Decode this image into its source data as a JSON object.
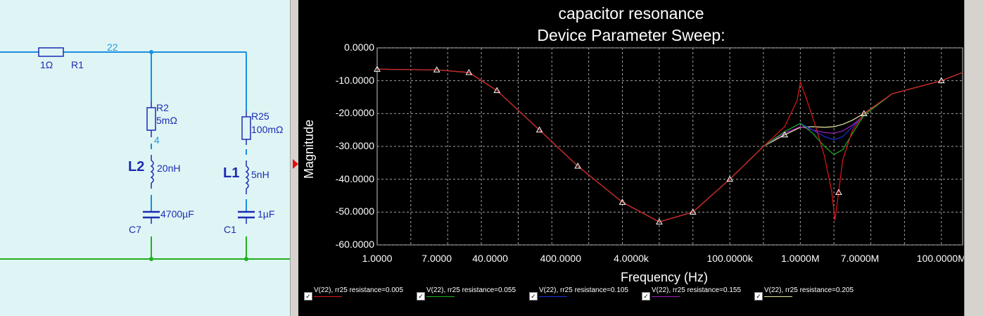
{
  "schematic": {
    "net_label": "22",
    "r1": {
      "value": "1Ω",
      "name": "R1"
    },
    "r2": {
      "name": "R2",
      "value": "5mΩ"
    },
    "node4": "4",
    "l2": {
      "name": "L2",
      "value": "20nH"
    },
    "c7": {
      "value": "4700µF",
      "name": "C7"
    },
    "r25": {
      "name": "R25",
      "value": "100mΩ"
    },
    "l1": {
      "name": "L1",
      "value": "5nH"
    },
    "c1": {
      "value": "1µF",
      "name": "C1"
    }
  },
  "grapher": {
    "title1": "capacitor resonance",
    "title2": "Device Parameter Sweep:"
  },
  "chart_data": {
    "type": "line",
    "title": "capacitor resonance / Device Parameter Sweep:",
    "xlabel": "Frequency (Hz)",
    "ylabel": "Magnitude",
    "xscale": "log",
    "xlim": [
      1,
      200000000
    ],
    "ylim": [
      -60,
      0
    ],
    "grid": true,
    "background": "#000000",
    "legend_position": "bottom",
    "y_ticks": [
      "0.0000",
      "-10.0000",
      "-20.0000",
      "-30.0000",
      "-40.0000",
      "-50.0000",
      "-60.0000"
    ],
    "x_ticks": [
      {
        "label": "1.0000",
        "value": 1
      },
      {
        "label": "7.0000",
        "value": 7
      },
      {
        "label": "40.0000",
        "value": 40
      },
      {
        "label": "400.0000",
        "value": 400
      },
      {
        "label": "4.0000k",
        "value": 4000
      },
      {
        "label": "100.0000k",
        "value": 100000
      },
      {
        "label": "1.0000M",
        "value": 1000000
      },
      {
        "label": "7.0000M",
        "value": 7000000
      },
      {
        "label": "100.0000M",
        "value": 100000000
      }
    ],
    "series": [
      {
        "name": "V(22), rr25 resistance=0.005",
        "color": "#e01818",
        "x": [
          1,
          7,
          20,
          50,
          200,
          700,
          3000,
          10000,
          30000,
          100000,
          300000,
          600000,
          900000,
          1000000,
          1200000,
          1600000,
          2200000,
          2800000,
          3100000,
          3400000,
          4000000,
          5500000,
          8000000,
          20000000,
          100000000,
          200000000
        ],
        "y": [
          -6.5,
          -6.7,
          -7.5,
          -13,
          -25,
          -36,
          -47,
          -53,
          -50,
          -40,
          -30,
          -24,
          -16,
          -10.5,
          -15,
          -23,
          -33,
          -44,
          -52.5,
          -46,
          -34,
          -25,
          -20,
          -14,
          -10,
          -7.5
        ]
      },
      {
        "name": "V(22), rr25 resistance=0.055",
        "color": "#20b020",
        "x": [
          1,
          7,
          20,
          50,
          200,
          700,
          3000,
          10000,
          30000,
          100000,
          300000,
          600000,
          1000000,
          1500000,
          2200000,
          3000000,
          4000000,
          5500000,
          8000000,
          20000000,
          100000000,
          200000000
        ],
        "y": [
          -6.5,
          -6.7,
          -7.5,
          -13,
          -25,
          -36,
          -47,
          -53,
          -50,
          -40,
          -30,
          -25.5,
          -23,
          -26,
          -30,
          -32.5,
          -31,
          -26,
          -20.5,
          -14,
          -10,
          -7.5
        ]
      },
      {
        "name": "V(22), rr25 resistance=0.105",
        "color": "#2030e0",
        "x": [
          1,
          7,
          20,
          50,
          200,
          700,
          3000,
          10000,
          30000,
          100000,
          300000,
          600000,
          1000000,
          1500000,
          2200000,
          3000000,
          4000000,
          5500000,
          8000000,
          20000000,
          100000000,
          200000000
        ],
        "y": [
          -6.5,
          -6.7,
          -7.5,
          -13,
          -25,
          -36,
          -47,
          -53,
          -50,
          -40,
          -30,
          -25.5,
          -23,
          -25,
          -27,
          -28,
          -27,
          -24,
          -20.5,
          -14,
          -10,
          -7.5
        ]
      },
      {
        "name": "V(22), rr25 resistance=0.155",
        "color": "#a020c0",
        "x": [
          1,
          7,
          20,
          50,
          200,
          700,
          3000,
          10000,
          30000,
          100000,
          300000,
          600000,
          1000000,
          1500000,
          2200000,
          3000000,
          4000000,
          5500000,
          8000000,
          20000000,
          100000000,
          200000000
        ],
        "y": [
          -6.5,
          -6.7,
          -7.5,
          -13,
          -25,
          -36,
          -47,
          -53,
          -50,
          -40,
          -30,
          -26,
          -24,
          -25,
          -25.8,
          -26,
          -25.3,
          -23.5,
          -20.5,
          -14,
          -10,
          -7.5
        ]
      },
      {
        "name": "V(22), rr25 resistance=0.205",
        "color": "#e8e8a0",
        "x": [
          1,
          7,
          20,
          50,
          200,
          700,
          3000,
          10000,
          30000,
          100000,
          300000,
          600000,
          1000000,
          1500000,
          2200000,
          3000000,
          4000000,
          5500000,
          8000000,
          20000000,
          100000000,
          200000000
        ],
        "y": [
          -6.5,
          -6.7,
          -7.5,
          -13,
          -25,
          -36,
          -47,
          -53,
          -50,
          -40,
          -30,
          -26.5,
          -24.2,
          -24,
          -24.2,
          -24,
          -23.3,
          -22,
          -20,
          -14,
          -10,
          -7.5
        ]
      }
    ]
  }
}
